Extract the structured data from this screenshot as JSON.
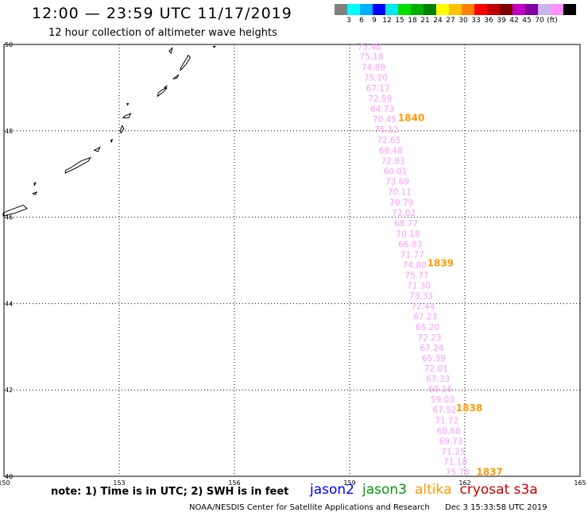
{
  "header": {
    "title": "12:00 — 23:59 UTC 11/17/2019",
    "subtitle": "12 hour collection of altimeter wave heights"
  },
  "legend": {
    "colors": [
      "#808080",
      "#00ffff",
      "#00b0ff",
      "#0000ff",
      "#00e8e8",
      "#00e000",
      "#00b000",
      "#008000",
      "#ffff00",
      "#ffc000",
      "#ff8000",
      "#ff0000",
      "#c00000",
      "#800000",
      "#c000c0",
      "#8000a0",
      "#c8b4f0",
      "#ff90ff",
      "#000000"
    ],
    "labels": [
      "3",
      "6",
      "9",
      "12",
      "15",
      "18",
      "21",
      "24",
      "27",
      "30",
      "33",
      "36",
      "39",
      "42",
      "45",
      "70"
    ],
    "unit": "(ft)"
  },
  "map": {
    "lon_range": [
      150,
      165
    ],
    "lat_range": [
      40,
      50
    ],
    "lon_ticks": [
      150,
      153,
      156,
      159,
      162,
      165
    ],
    "lat_ticks": [
      40,
      42,
      44,
      46,
      48,
      50
    ],
    "grid": true,
    "track_color": "#ff99ff",
    "pass_label_color": "#ff9900",
    "track": [
      {
        "lat": 49.95,
        "lon": 159.2,
        "value": "75.48"
      },
      {
        "lat": 49.72,
        "lon": 159.26,
        "value": "75.18"
      },
      {
        "lat": 49.48,
        "lon": 159.31,
        "value": "74.89"
      },
      {
        "lat": 49.24,
        "lon": 159.37,
        "value": "75.20"
      },
      {
        "lat": 48.99,
        "lon": 159.43,
        "value": "67.17"
      },
      {
        "lat": 48.75,
        "lon": 159.48,
        "value": "72.59"
      },
      {
        "lat": 48.51,
        "lon": 159.54,
        "value": "64.73"
      },
      {
        "lat": 48.27,
        "lon": 159.6,
        "value": "70.45"
      },
      {
        "lat": 48.03,
        "lon": 159.65,
        "value": "75.12"
      },
      {
        "lat": 47.79,
        "lon": 159.71,
        "value": "72.65"
      },
      {
        "lat": 47.55,
        "lon": 159.76,
        "value": "68.48"
      },
      {
        "lat": 47.31,
        "lon": 159.82,
        "value": "72.83"
      },
      {
        "lat": 47.07,
        "lon": 159.88,
        "value": "60.01"
      },
      {
        "lat": 46.83,
        "lon": 159.93,
        "value": "73.69"
      },
      {
        "lat": 46.59,
        "lon": 159.99,
        "value": "70.11"
      },
      {
        "lat": 46.34,
        "lon": 160.04,
        "value": "70.79"
      },
      {
        "lat": 46.1,
        "lon": 160.1,
        "value": "72.02"
      },
      {
        "lat": 45.86,
        "lon": 160.16,
        "value": "68.77"
      },
      {
        "lat": 45.62,
        "lon": 160.21,
        "value": "70.18"
      },
      {
        "lat": 45.38,
        "lon": 160.27,
        "value": "66.83"
      },
      {
        "lat": 45.14,
        "lon": 160.32,
        "value": "71.77"
      },
      {
        "lat": 44.9,
        "lon": 160.38,
        "value": "74.80"
      },
      {
        "lat": 44.66,
        "lon": 160.44,
        "value": "75.77"
      },
      {
        "lat": 44.42,
        "lon": 160.49,
        "value": "71.30"
      },
      {
        "lat": 44.18,
        "lon": 160.55,
        "value": "73.33"
      },
      {
        "lat": 43.94,
        "lon": 160.6,
        "value": "72.44"
      },
      {
        "lat": 43.7,
        "lon": 160.66,
        "value": "67.23"
      },
      {
        "lat": 43.46,
        "lon": 160.72,
        "value": "65.20"
      },
      {
        "lat": 43.22,
        "lon": 160.77,
        "value": "72.23"
      },
      {
        "lat": 42.98,
        "lon": 160.83,
        "value": "67.24"
      },
      {
        "lat": 42.74,
        "lon": 160.88,
        "value": "65.39"
      },
      {
        "lat": 42.5,
        "lon": 160.94,
        "value": "72.01"
      },
      {
        "lat": 42.26,
        "lon": 160.99,
        "value": "67.33"
      },
      {
        "lat": 42.02,
        "lon": 161.05,
        "value": "60.16"
      },
      {
        "lat": 41.78,
        "lon": 161.11,
        "value": "59.03"
      },
      {
        "lat": 41.54,
        "lon": 161.16,
        "value": "67.52"
      },
      {
        "lat": 41.3,
        "lon": 161.22,
        "value": "71.72"
      },
      {
        "lat": 41.06,
        "lon": 161.27,
        "value": "68.68"
      },
      {
        "lat": 40.82,
        "lon": 161.33,
        "value": "69.73"
      },
      {
        "lat": 40.58,
        "lon": 161.39,
        "value": "71.25"
      },
      {
        "lat": 40.34,
        "lon": 161.44,
        "value": "71.18"
      },
      {
        "lat": 40.1,
        "lon": 161.5,
        "value": "75.78"
      }
    ],
    "passes": [
      {
        "label": "1840",
        "lat": 48.32,
        "lon": 160.26
      },
      {
        "label": "1839",
        "lat": 44.95,
        "lon": 161.02
      },
      {
        "label": "1838",
        "lat": 41.6,
        "lon": 161.77
      },
      {
        "label": "1837",
        "lat": 40.12,
        "lon": 162.3
      }
    ],
    "islands": [
      [
        [
          149.98,
          46.03
        ],
        [
          150.3,
          46.1
        ],
        [
          150.6,
          46.2
        ],
        [
          150.5,
          46.28
        ],
        [
          150.2,
          46.18
        ],
        [
          149.98,
          46.1
        ]
      ],
      [
        [
          150.75,
          46.55
        ],
        [
          150.85,
          46.58
        ],
        [
          150.82,
          46.52
        ]
      ],
      [
        [
          150.78,
          46.78
        ],
        [
          150.82,
          46.8
        ],
        [
          150.8,
          46.74
        ]
      ],
      [
        [
          151.6,
          47.02
        ],
        [
          151.9,
          47.15
        ],
        [
          152.2,
          47.3
        ],
        [
          152.25,
          47.38
        ],
        [
          152.0,
          47.3
        ],
        [
          151.75,
          47.15
        ],
        [
          151.6,
          47.08
        ]
      ],
      [
        [
          152.35,
          47.55
        ],
        [
          152.5,
          47.62
        ],
        [
          152.45,
          47.52
        ]
      ],
      [
        [
          152.78,
          47.78
        ],
        [
          152.82,
          47.8
        ],
        [
          152.8,
          47.74
        ]
      ],
      [
        [
          153.05,
          47.95
        ],
        [
          153.12,
          48.05
        ],
        [
          153.08,
          48.12
        ],
        [
          153.02,
          48.0
        ]
      ],
      [
        [
          153.15,
          48.35
        ],
        [
          153.3,
          48.4
        ],
        [
          153.25,
          48.3
        ],
        [
          153.1,
          48.3
        ]
      ],
      [
        [
          153.22,
          48.6
        ],
        [
          153.24,
          48.63
        ],
        [
          153.2,
          48.63
        ]
      ],
      [
        [
          154.0,
          48.8
        ],
        [
          154.15,
          48.9
        ],
        [
          154.25,
          49.0
        ],
        [
          154.12,
          48.95
        ],
        [
          154.02,
          48.88
        ]
      ],
      [
        [
          154.18,
          49.0
        ],
        [
          154.25,
          49.05
        ],
        [
          154.2,
          49.0
        ]
      ],
      [
        [
          154.4,
          49.2
        ],
        [
          154.55,
          49.3
        ],
        [
          154.5,
          49.22
        ]
      ],
      [
        [
          154.6,
          49.4
        ],
        [
          154.75,
          49.55
        ],
        [
          154.85,
          49.7
        ],
        [
          154.8,
          49.75
        ],
        [
          154.7,
          49.6
        ],
        [
          154.6,
          49.45
        ]
      ],
      [
        [
          154.3,
          49.85
        ],
        [
          154.38,
          49.92
        ],
        [
          154.35,
          49.8
        ]
      ],
      [
        [
          155.45,
          49.95
        ],
        [
          155.5,
          49.96
        ],
        [
          155.48,
          49.93
        ]
      ]
    ]
  },
  "footer": {
    "note": "note: 1) Time is in UTC; 2) SWH is in feet",
    "satellites": [
      {
        "name": "jason2",
        "color": "#0000ff"
      },
      {
        "name": "jason3",
        "color": "#009900"
      },
      {
        "name": "altika",
        "color": "#ff9900"
      },
      {
        "name": "cryosat s3a",
        "color": "#cc0000"
      }
    ],
    "credit": "NOAA/NESDIS Center for Satellite Applications and Research",
    "timestamp": "Dec  3 15:33:58 UTC 2019"
  }
}
